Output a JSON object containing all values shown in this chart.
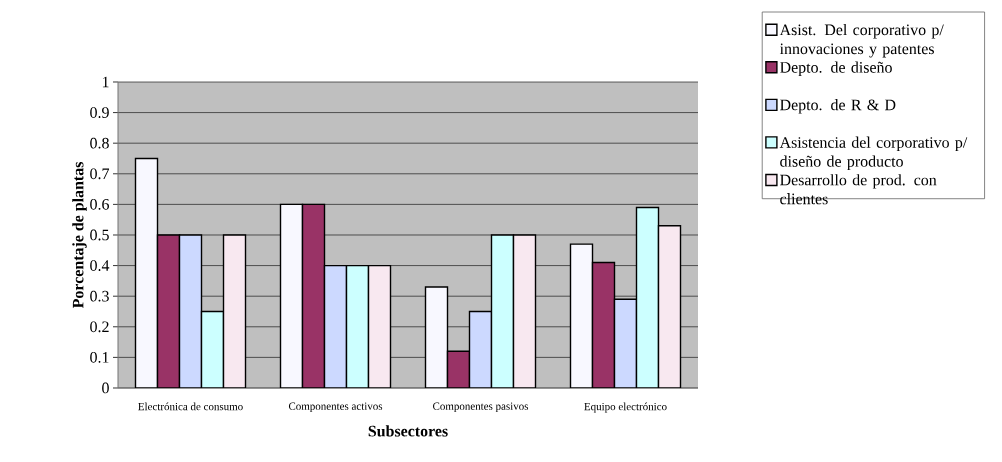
{
  "chart_data": {
    "type": "bar",
    "xlabel": "Subsectores",
    "ylabel": "Porcentaje de plantas",
    "categories": [
      "Electrónica de consumo",
      "Componentes activos",
      "Componentes pasivos",
      "Equipo electrónico"
    ],
    "series": [
      {
        "name": "Asist. Del corporativo p/ innovaciones y patentes",
        "color": "#f8f8ff",
        "values": [
          0.75,
          0.6,
          0.33,
          0.47
        ]
      },
      {
        "name": "Depto. de diseño",
        "color": "#993366",
        "values": [
          0.5,
          0.6,
          0.12,
          0.41
        ]
      },
      {
        "name": "Depto. de R & D",
        "color": "#ccd9ff",
        "values": [
          0.5,
          0.4,
          0.25,
          0.29
        ]
      },
      {
        "name": "Asistencia del corporativo p/ diseño de producto",
        "color": "#ccffff",
        "values": [
          0.25,
          0.4,
          0.5,
          0.59
        ]
      },
      {
        "name": "Desarrollo de prod. con clientes",
        "color": "#f8e8f0",
        "values": [
          0.5,
          0.4,
          0.5,
          0.53
        ]
      }
    ],
    "ylim": [
      0,
      1
    ],
    "yticks": [
      0,
      0.1,
      0.2,
      0.3,
      0.4,
      0.5,
      0.6,
      0.7,
      0.8,
      0.9,
      1
    ],
    "grid": "y",
    "legend": "right"
  }
}
